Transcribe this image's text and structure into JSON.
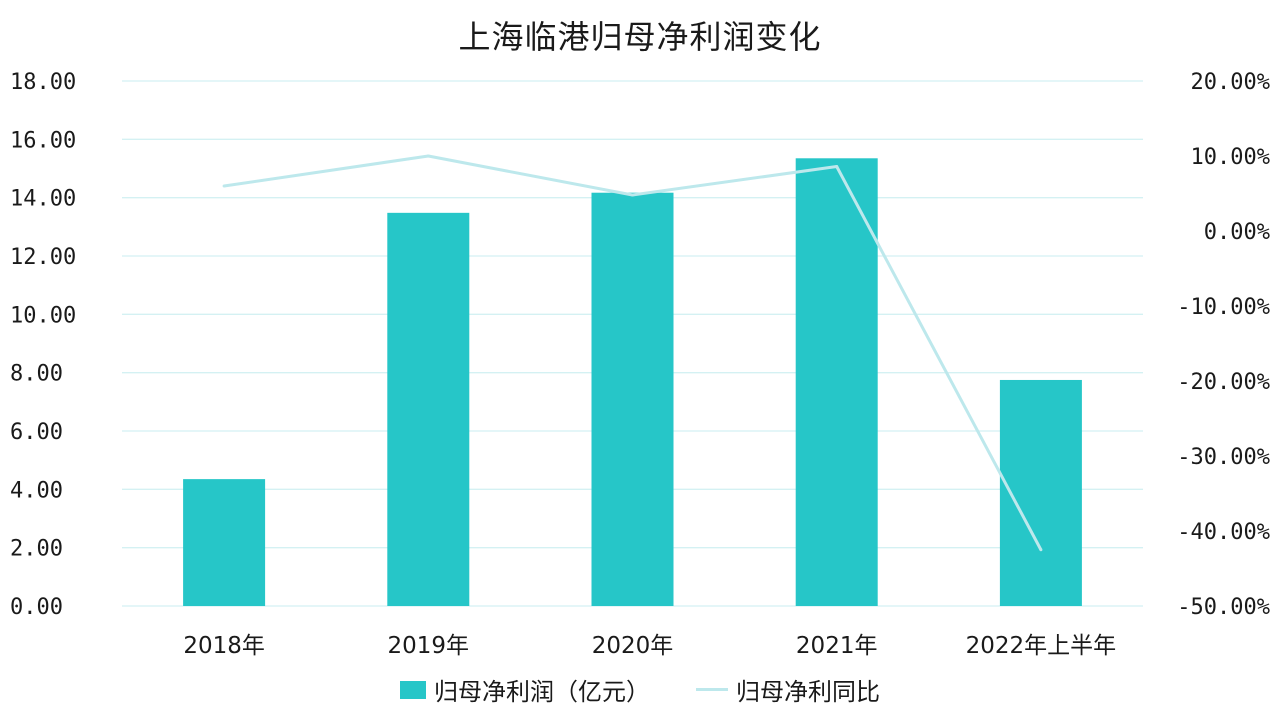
{
  "colors": {
    "bar": "#26C6C8",
    "line": "#BDE8EC",
    "grid": "#D4F1F3"
  },
  "chart_data": {
    "type": "bar",
    "title": "上海临港归母净利润变化",
    "categories": [
      "2018年",
      "2019年",
      "2020年",
      "2021年",
      "2022年上半年"
    ],
    "series": [
      {
        "name": "归母净利润（亿元）",
        "type": "bar",
        "axis": "left",
        "values": [
          4.35,
          13.48,
          14.17,
          15.35,
          7.75
        ]
      },
      {
        "name": "归母净利同比",
        "type": "line",
        "axis": "right",
        "values": [
          6.0,
          10.0,
          4.8,
          8.6,
          -42.5
        ]
      }
    ],
    "y_left": {
      "min": 0,
      "max": 18,
      "step": 2,
      "tick_labels": [
        "0.00",
        "2.00",
        "4.00",
        "6.00",
        "8.00",
        "10.00",
        "12.00",
        "14.00",
        "16.00",
        "18.00"
      ]
    },
    "y_right": {
      "min": -50,
      "max": 20,
      "step": 10,
      "tick_labels": [
        "-50.00%",
        "-40.00%",
        "-30.00%",
        "-20.00%",
        "-10.00%",
        "0.00%",
        "10.00%",
        "20.00%"
      ]
    },
    "grid": true,
    "legend_position": "bottom"
  }
}
